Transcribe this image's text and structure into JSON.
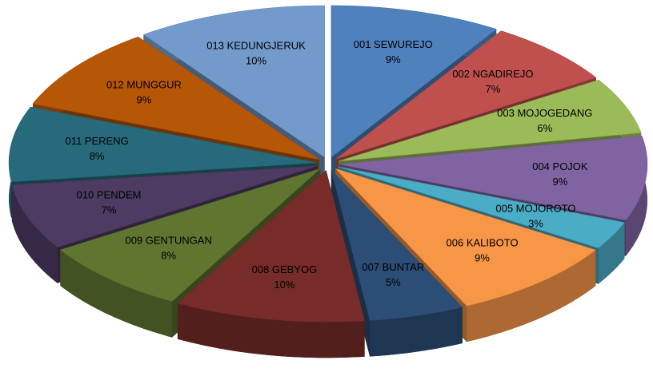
{
  "chart_data": {
    "type": "pie",
    "categories": [
      "001  SEWUREJO",
      "002  NGADIREJO",
      "003  MOJOGEDANG",
      "004  POJOK",
      "005  MOJOROTO",
      "006  KALIBOTO",
      "007  BUNTAR",
      "008  GEBYOG",
      "009  GENTUNGAN",
      "010  PENDEM",
      "011  PERENG",
      "012  MUNGGUR",
      "013  KEDUNGJERUK"
    ],
    "values": [
      9,
      7,
      6,
      9,
      3,
      9,
      5,
      10,
      8,
      7,
      8,
      9,
      10
    ],
    "value_labels": [
      "9%",
      "7%",
      "6%",
      "9%",
      "3%",
      "9%",
      "5%",
      "10%",
      "8%",
      "7%",
      "8%",
      "9%",
      "10%"
    ],
    "colors": [
      "#4f81bd",
      "#c0504d",
      "#9bbb59",
      "#8064a2",
      "#4bacc6",
      "#f79646",
      "#2c4d75",
      "#772c2a",
      "#5f7530",
      "#4d3b62",
      "#276a7c",
      "#b65708",
      "#729aca"
    ]
  }
}
